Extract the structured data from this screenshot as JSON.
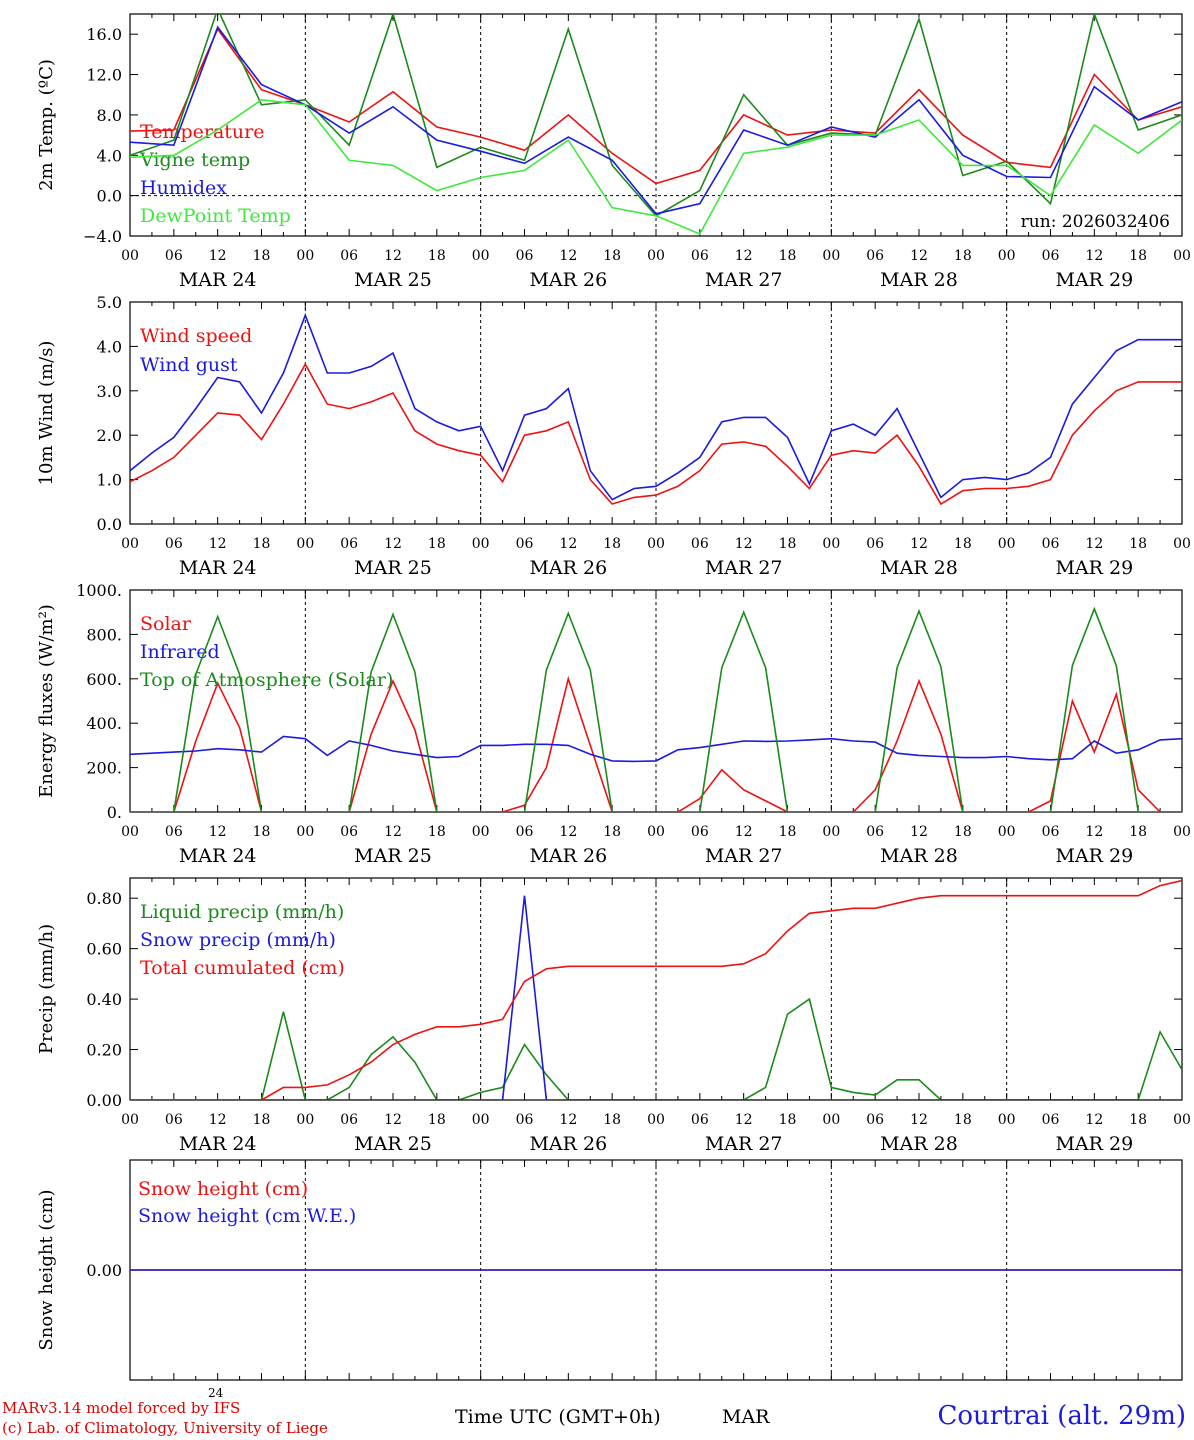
{
  "chart_data": [
    {
      "id": "temperature",
      "type": "line",
      "title": "",
      "ylabel": "2m Temp. (ºC)",
      "ylim": [
        -4,
        18
      ],
      "yticks": [
        -4,
        0,
        4,
        8,
        12,
        16
      ],
      "ytick_labels": [
        "−4.0",
        "0.0",
        "4.0",
        "8.0",
        "12.0",
        "16.0"
      ],
      "zero_line": true,
      "annotation": "run: 2026032406",
      "x_hours": [
        0,
        6,
        12,
        18,
        24,
        30,
        36,
        42,
        48,
        54,
        60,
        66,
        72,
        78,
        84,
        90,
        96,
        102,
        108,
        114,
        120,
        126,
        132,
        138,
        144
      ],
      "series": [
        {
          "name": "Temperature",
          "color": "#ee1111",
          "values": [
            6.4,
            6.5,
            16.5,
            10.5,
            9.0,
            7.3,
            10.3,
            6.8,
            5.8,
            4.5,
            8.0,
            4.2,
            1.2,
            2.5,
            8.0,
            6.0,
            6.5,
            6.2,
            10.5,
            6.0,
            3.3,
            2.8,
            12.0,
            7.5,
            8.8
          ]
        },
        {
          "name": "Vigne temp",
          "color": "#1b8a1b",
          "values": [
            4.0,
            5.5,
            18.5,
            9.0,
            9.5,
            5.0,
            18.0,
            2.8,
            4.8,
            3.5,
            16.5,
            3.0,
            -2.0,
            0.5,
            10.0,
            5.0,
            6.2,
            6.0,
            17.5,
            2.0,
            3.4,
            -0.8,
            18.0,
            6.5,
            8.0
          ]
        },
        {
          "name": "Humidex",
          "color": "#1a1ae0",
          "values": [
            5.3,
            5.0,
            16.7,
            11.0,
            9.0,
            6.2,
            8.8,
            5.5,
            4.4,
            3.2,
            5.8,
            3.5,
            -1.8,
            -0.8,
            6.5,
            5.0,
            6.8,
            5.8,
            9.5,
            4.0,
            1.9,
            1.8,
            10.8,
            7.5,
            9.3
          ]
        },
        {
          "name": "DewPoint Temp",
          "color": "#3ee83e",
          "values": [
            3.8,
            4.0,
            6.5,
            9.5,
            9.0,
            3.5,
            3.0,
            0.5,
            1.8,
            2.5,
            5.5,
            -1.2,
            -2.0,
            -3.8,
            4.2,
            4.8,
            6.0,
            6.0,
            7.5,
            3.0,
            3.0,
            0.0,
            7.0,
            4.2,
            7.5
          ]
        }
      ]
    },
    {
      "id": "wind",
      "type": "line",
      "title": "",
      "ylabel": "10m Wind (m/s)",
      "ylim": [
        0,
        5
      ],
      "yticks": [
        0,
        1,
        2,
        3,
        4,
        5
      ],
      "ytick_labels": [
        "0.0",
        "1.0",
        "2.0",
        "3.0",
        "4.0",
        "5.0"
      ],
      "x_hours": [
        0,
        3,
        6,
        9,
        12,
        15,
        18,
        21,
        24,
        27,
        30,
        33,
        36,
        39,
        42,
        45,
        48,
        51,
        54,
        57,
        60,
        63,
        66,
        69,
        72,
        75,
        78,
        81,
        84,
        87,
        90,
        93,
        96,
        99,
        102,
        105,
        108,
        111,
        114,
        117,
        120,
        123,
        126,
        129,
        132,
        135,
        138,
        141,
        144
      ],
      "series": [
        {
          "name": "Wind speed",
          "color": "#ee1111",
          "values": [
            0.95,
            1.2,
            1.5,
            2.0,
            2.5,
            2.45,
            1.9,
            2.7,
            3.6,
            2.7,
            2.6,
            2.75,
            2.95,
            2.1,
            1.8,
            1.65,
            1.55,
            0.95,
            2.0,
            2.1,
            2.3,
            1.0,
            0.45,
            0.6,
            0.65,
            0.85,
            1.2,
            1.8,
            1.85,
            1.75,
            1.3,
            0.8,
            1.55,
            1.65,
            1.6,
            2.0,
            1.3,
            0.45,
            0.75,
            0.8,
            0.8,
            0.85,
            1.0,
            2.0,
            2.55,
            3.0,
            3.2,
            3.2,
            3.2
          ]
        },
        {
          "name": "Wind gust",
          "color": "#1a1ae0",
          "values": [
            1.2,
            1.6,
            1.95,
            2.6,
            3.3,
            3.2,
            2.5,
            3.4,
            4.7,
            3.4,
            3.4,
            3.55,
            3.85,
            2.6,
            2.3,
            2.1,
            2.2,
            1.2,
            2.45,
            2.6,
            3.05,
            1.2,
            0.55,
            0.8,
            0.85,
            1.15,
            1.5,
            2.3,
            2.4,
            2.4,
            1.95,
            0.9,
            2.1,
            2.25,
            2.0,
            2.6,
            1.6,
            0.6,
            1.0,
            1.05,
            1.0,
            1.15,
            1.5,
            2.7,
            3.3,
            3.9,
            4.15,
            4.15,
            4.15
          ]
        }
      ]
    },
    {
      "id": "energy",
      "type": "line",
      "title": "",
      "ylabel": "Energy fluxes (W/m²)",
      "ylim": [
        0,
        1000
      ],
      "yticks": [
        0,
        200,
        400,
        600,
        800,
        1000
      ],
      "ytick_labels": [
        "0.",
        "200.",
        "400.",
        "600.",
        "800.",
        "1000."
      ],
      "x_hours": [
        0,
        3,
        6,
        9,
        12,
        15,
        18,
        21,
        24,
        27,
        30,
        33,
        36,
        39,
        42,
        45,
        48,
        51,
        54,
        57,
        60,
        63,
        66,
        69,
        72,
        75,
        78,
        81,
        84,
        87,
        90,
        93,
        96,
        99,
        102,
        105,
        108,
        111,
        114,
        117,
        120,
        123,
        126,
        129,
        132,
        135,
        138,
        141,
        144
      ],
      "series": [
        {
          "name": "Solar",
          "color": "#ee1111",
          "values": [
            0,
            0,
            0,
            320,
            580,
            380,
            0,
            0,
            0,
            0,
            0,
            350,
            590,
            370,
            0,
            0,
            0,
            0,
            30,
            200,
            600,
            300,
            0,
            0,
            0,
            0,
            60,
            190,
            100,
            50,
            0,
            0,
            0,
            0,
            100,
            320,
            590,
            350,
            0,
            0,
            0,
            0,
            50,
            500,
            270,
            530,
            100,
            0,
            0
          ]
        },
        {
          "name": "Infrared",
          "color": "#1a1ae0",
          "values": [
            260,
            265,
            270,
            275,
            285,
            280,
            270,
            340,
            330,
            255,
            320,
            300,
            275,
            260,
            245,
            250,
            300,
            300,
            305,
            305,
            300,
            260,
            230,
            228,
            230,
            280,
            290,
            305,
            320,
            318,
            320,
            325,
            330,
            320,
            315,
            265,
            255,
            250,
            245,
            245,
            250,
            240,
            235,
            240,
            320,
            265,
            280,
            325,
            330
          ]
        },
        {
          "name": "Top of Atmosphere (Solar)",
          "color": "#1b8a1b",
          "values": [
            0,
            0,
            0,
            620,
            880,
            620,
            0,
            0,
            0,
            0,
            0,
            630,
            890,
            630,
            0,
            0,
            0,
            0,
            0,
            640,
            895,
            640,
            0,
            0,
            0,
            0,
            0,
            650,
            900,
            650,
            0,
            0,
            0,
            0,
            0,
            650,
            905,
            655,
            0,
            0,
            0,
            0,
            0,
            660,
            915,
            660,
            0,
            0,
            0
          ]
        }
      ]
    },
    {
      "id": "precip",
      "type": "line",
      "title": "",
      "ylabel": "Precip (mm/h)",
      "ylim": [
        0,
        0.88
      ],
      "yticks": [
        0,
        0.2,
        0.4,
        0.6,
        0.8
      ],
      "ytick_labels": [
        "0.00",
        "0.20",
        "0.40",
        "0.60",
        "0.80"
      ],
      "x_hours": [
        0,
        3,
        6,
        9,
        12,
        15,
        18,
        21,
        24,
        27,
        30,
        33,
        36,
        39,
        42,
        45,
        48,
        51,
        54,
        57,
        60,
        63,
        66,
        69,
        72,
        75,
        78,
        81,
        84,
        87,
        90,
        93,
        96,
        99,
        102,
        105,
        108,
        111,
        114,
        117,
        120,
        123,
        126,
        129,
        132,
        135,
        138,
        141,
        144
      ],
      "series": [
        {
          "name": "Liquid precip (mm/h)",
          "color": "#1b8a1b",
          "values": [
            0,
            0,
            0,
            0,
            0,
            0,
            0,
            0.35,
            0,
            0,
            0.05,
            0.18,
            0.25,
            0.15,
            0,
            0,
            0.03,
            0.05,
            0.22,
            0.1,
            0,
            0,
            0,
            0,
            0,
            0,
            0,
            0,
            0,
            0.05,
            0.34,
            0.4,
            0.05,
            0.03,
            0.02,
            0.08,
            0.08,
            0,
            0,
            0,
            0,
            0,
            0,
            0,
            0,
            0,
            0,
            0.27,
            0.12
          ]
        },
        {
          "name": "Snow precip (mm/h)",
          "color": "#1a1ae0",
          "values": [
            0,
            0,
            0,
            0,
            0,
            0,
            0,
            0,
            0,
            0,
            0,
            0,
            0,
            0,
            0,
            0,
            0,
            0,
            0.81,
            0,
            0,
            0,
            0,
            0,
            0,
            0,
            0,
            0,
            0,
            0,
            0,
            0,
            0,
            0,
            0,
            0,
            0,
            0,
            0,
            0,
            0,
            0,
            0,
            0,
            0,
            0,
            0,
            0,
            0
          ]
        },
        {
          "name": "Total cumulated (cm)",
          "color": "#ee1111",
          "values": [
            0,
            0,
            0,
            0,
            0,
            0,
            0,
            0.05,
            0.05,
            0.06,
            0.1,
            0.15,
            0.22,
            0.26,
            0.29,
            0.29,
            0.3,
            0.32,
            0.47,
            0.52,
            0.53,
            0.53,
            0.53,
            0.53,
            0.53,
            0.53,
            0.53,
            0.53,
            0.54,
            0.58,
            0.67,
            0.74,
            0.75,
            0.76,
            0.76,
            0.78,
            0.8,
            0.81,
            0.81,
            0.81,
            0.81,
            0.81,
            0.81,
            0.81,
            0.81,
            0.81,
            0.81,
            0.85,
            0.87
          ]
        }
      ]
    },
    {
      "id": "snow",
      "type": "line",
      "title": "",
      "ylabel": "Snow height (cm)",
      "ylim": [
        -0.5,
        0.5
      ],
      "yticks": [
        0
      ],
      "ytick_labels": [
        "0.00"
      ],
      "x_hours": [
        0,
        144
      ],
      "series": [
        {
          "name": "Snow height (cm)",
          "color": "#ee1111",
          "values": [
            0,
            0
          ]
        },
        {
          "name": "Snow height (cm W.E.)",
          "color": "#1a1ae0",
          "values": [
            0,
            0
          ]
        }
      ]
    }
  ],
  "x_axis": {
    "hour_labels": [
      "00",
      "06",
      "12",
      "18",
      "00",
      "06",
      "12",
      "18",
      "00",
      "06",
      "12",
      "18",
      "00",
      "06",
      "12",
      "18",
      "00",
      "06",
      "12",
      "18",
      "00",
      "06",
      "12",
      "18",
      "00"
    ],
    "day_labels": [
      "MAR 24",
      "MAR 25",
      "MAR 26",
      "MAR 27",
      "MAR 28",
      "MAR 29"
    ],
    "xlim_hours": [
      0,
      144
    ]
  },
  "footer": {
    "model_credit": "MARv3.14 model forced by IFS",
    "lab_credit": "(c) Lab. of Climatology, University of Liege",
    "small_label": "24",
    "axis_title": "Time UTC (GMT+0h)",
    "axis_month": "MAR",
    "station": "Courtrai (alt. 29m)"
  }
}
